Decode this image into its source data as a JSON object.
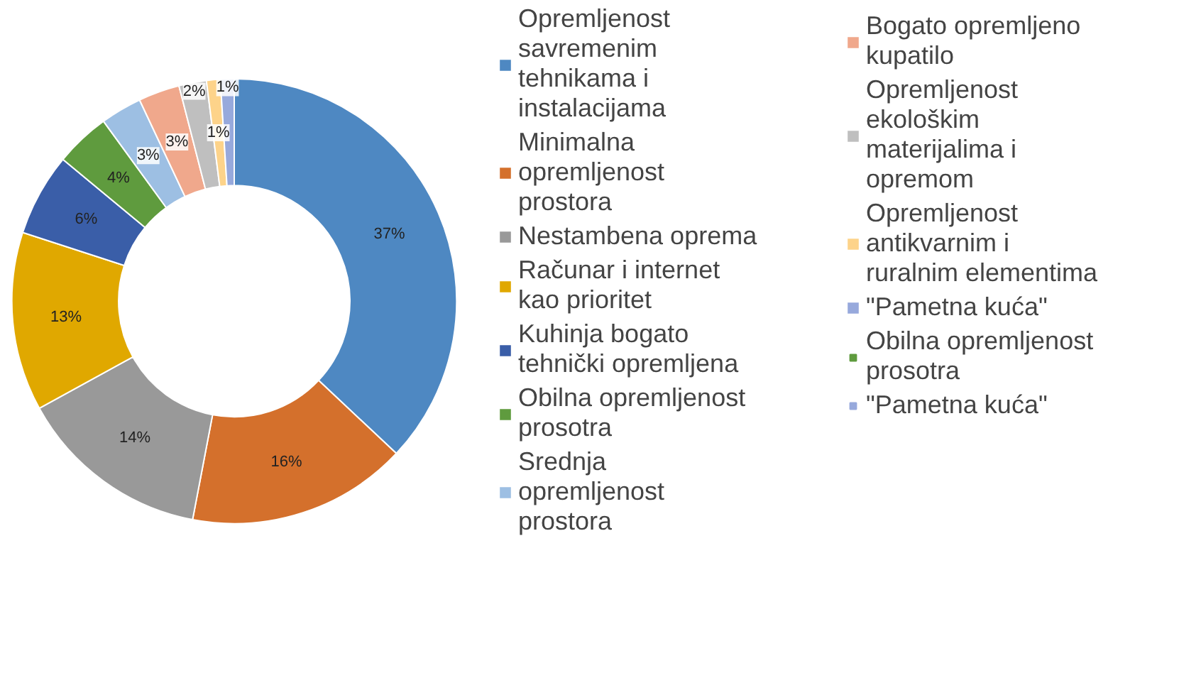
{
  "chart_data": {
    "type": "donut",
    "categories": [
      "Opremljenost savremenim tehnikama i instalacijama",
      "Minimalna opremljenost prostora",
      "Nestambena oprema",
      "Računar i internet kao prioritet",
      "Kuhinja bogato tehnički opremljena",
      "Obilna opremljenost prosotra",
      "Srednja opremljenost prostora",
      "Bogato opremljeno kupatilo",
      "Opremljenost ekološkim materijalima i opremom",
      "Opremljenost antikvarnim i ruralnim elementima",
      "\"Pametna kuća\"",
      "Obilna opremljenost prosotra",
      "\"Pametna kuća\""
    ],
    "values": [
      37,
      16,
      14,
      13,
      6,
      4,
      3,
      3,
      2,
      1,
      1,
      0,
      0
    ],
    "value_labels": [
      "37%",
      "16%",
      "14%",
      "13%",
      "6%",
      "4%",
      "3%",
      "3%",
      "2%",
      "1%",
      "1%",
      null,
      null
    ],
    "colors": [
      "#4e88c2",
      "#d4702c",
      "#999999",
      "#e0a800",
      "#3a5ea8",
      "#5f9b3e",
      "#9dbfe3",
      "#f0a88c",
      "#bfbfbf",
      "#fdd38a",
      "#97a9dc",
      "#5f9b3e",
      "#97a9dc"
    ],
    "legend": "right"
  }
}
